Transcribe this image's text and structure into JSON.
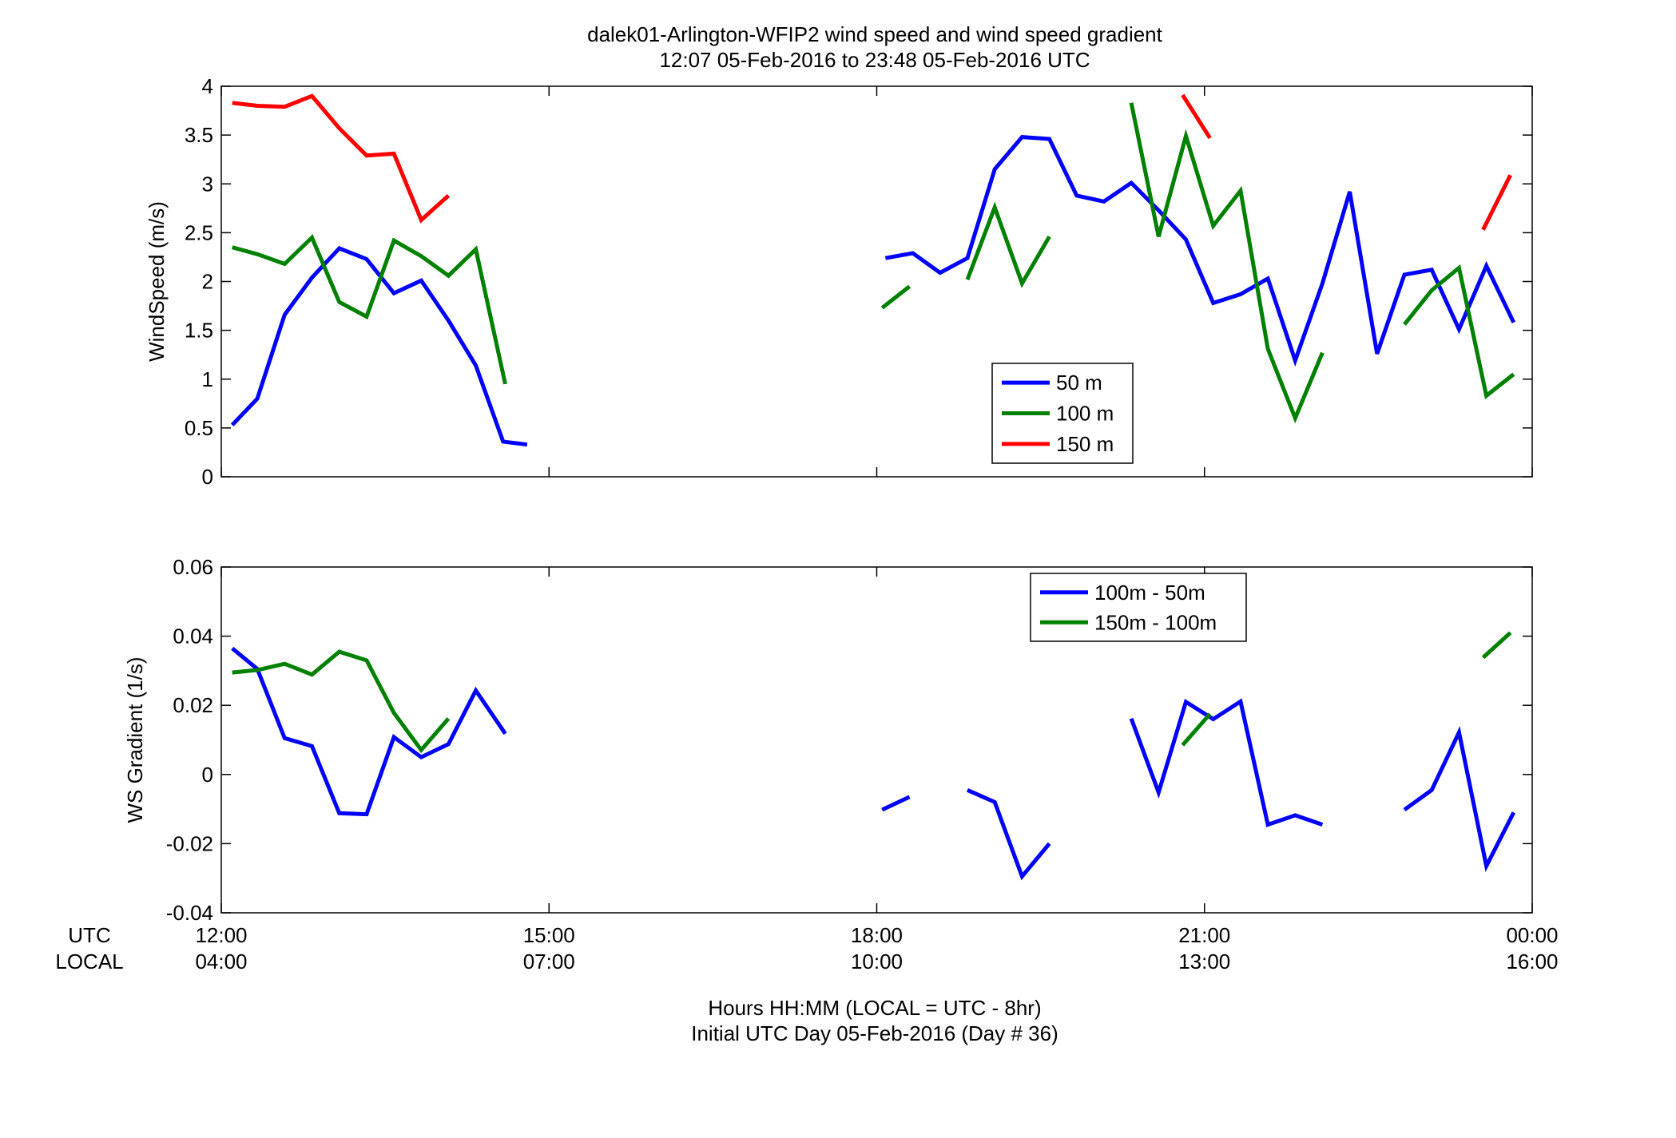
{
  "figure": {
    "title_line1": "dalek01-Arlington-WFIP2  wind speed and wind speed gradient",
    "title_line2": "12:07 05-Feb-2016 to 23:48 05-Feb-2016  UTC",
    "xlabel_line1": "Hours HH:MM  (LOCAL = UTC - 8hr)",
    "xlabel_line2": "Initial UTC Day 05-Feb-2016 (Day # 36)",
    "row_label_utc": "UTC",
    "row_label_local": "LOCAL"
  },
  "x_ticks": [
    {
      "utc": "12:00",
      "local": "04:00",
      "hour": 12
    },
    {
      "utc": "15:00",
      "local": "07:00",
      "hour": 15
    },
    {
      "utc": "18:00",
      "local": "10:00",
      "hour": 18
    },
    {
      "utc": "21:00",
      "local": "13:00",
      "hour": 21
    },
    {
      "utc": "00:00",
      "local": "16:00",
      "hour": 24
    }
  ],
  "chart_data": [
    {
      "type": "line",
      "ylabel": "WindSpeed (m/s)",
      "xlim": [
        12,
        24
      ],
      "ylim": [
        0,
        4
      ],
      "yticks": [
        0,
        0.5,
        1,
        1.5,
        2,
        2.5,
        3,
        3.5,
        4
      ],
      "ytick_labels": [
        "0",
        "0.5",
        "1",
        "1.5",
        "2",
        "2.5",
        "3",
        "3.5",
        "4"
      ],
      "grid": false,
      "legend_position": "lower-center-right",
      "series": [
        {
          "name": "50 m",
          "color": "#0000ff",
          "segments": [
            {
              "x": [
                12.1,
                12.33,
                12.58,
                12.83,
                13.08,
                13.33,
                13.58,
                13.83,
                14.08,
                14.33,
                14.58,
                14.8
              ],
              "y": [
                0.53,
                0.8,
                1.66,
                2.04,
                2.34,
                2.23,
                1.88,
                2.01,
                1.6,
                1.14,
                0.36,
                0.33
              ]
            },
            {
              "x": [
                18.08,
                18.33,
                18.58,
                18.83,
                19.08,
                19.33,
                19.58,
                19.83,
                20.08,
                20.33,
                20.58,
                20.83,
                21.08,
                21.33,
                21.58,
                21.83,
                22.08,
                22.33,
                22.58,
                22.83,
                23.08,
                23.33,
                23.58,
                23.83
              ],
              "y": [
                2.24,
                2.29,
                2.09,
                2.24,
                3.15,
                3.48,
                3.46,
                2.88,
                2.82,
                3.01,
                2.73,
                2.43,
                1.78,
                1.87,
                2.03,
                1.19,
                1.98,
                2.92,
                1.26,
                2.07,
                2.12,
                1.51,
                2.16,
                1.58
              ]
            }
          ]
        },
        {
          "name": "100 m",
          "color": "#008000",
          "segments": [
            {
              "x": [
                12.1,
                12.33,
                12.58,
                12.83,
                13.08,
                13.33,
                13.58,
                13.83,
                14.08,
                14.33,
                14.6
              ],
              "y": [
                2.35,
                2.28,
                2.18,
                2.45,
                1.79,
                1.64,
                2.42,
                2.26,
                2.06,
                2.33,
                0.95
              ]
            },
            {
              "x": [
                18.05,
                18.3
              ],
              "y": [
                1.73,
                1.95
              ]
            },
            {
              "x": [
                18.83,
                19.08,
                19.33,
                19.58
              ],
              "y": [
                2.02,
                2.76,
                1.98,
                2.46
              ]
            },
            {
              "x": [
                20.33,
                20.58,
                20.83,
                21.08,
                21.33,
                21.58,
                21.83,
                22.08
              ],
              "y": [
                3.83,
                2.46,
                3.49,
                2.57,
                2.93,
                1.31,
                0.6,
                1.27
              ]
            },
            {
              "x": [
                22.83,
                23.08,
                23.33,
                23.58,
                23.83
              ],
              "y": [
                1.56,
                1.91,
                2.14,
                0.83,
                1.05
              ]
            }
          ]
        },
        {
          "name": "150 m",
          "color": "#ff0000",
          "segments": [
            {
              "x": [
                12.1,
                12.33,
                12.58,
                12.83,
                13.08,
                13.33,
                13.58,
                13.83,
                14.08
              ],
              "y": [
                3.83,
                3.8,
                3.79,
                3.9,
                3.57,
                3.29,
                3.31,
                2.63,
                2.88
              ]
            },
            {
              "x": [
                20.8,
                21.05
              ],
              "y": [
                3.91,
                3.47
              ]
            },
            {
              "x": [
                23.55,
                23.8
              ],
              "y": [
                2.53,
                3.09
              ]
            }
          ]
        }
      ]
    },
    {
      "type": "line",
      "ylabel": "WS Gradient (1/s)",
      "xlim": [
        12,
        24
      ],
      "ylim": [
        -0.04,
        0.06
      ],
      "yticks": [
        -0.04,
        -0.02,
        0,
        0.02,
        0.04,
        0.06
      ],
      "ytick_labels": [
        "-0.04",
        "-0.02",
        "0",
        "0.02",
        "0.04",
        "0.06"
      ],
      "grid": false,
      "legend_position": "top-right",
      "series": [
        {
          "name": "100m - 50m",
          "color": "#0000ff",
          "segments": [
            {
              "x": [
                12.1,
                12.33,
                12.58,
                12.83,
                13.08,
                13.33,
                13.58,
                13.83,
                14.08,
                14.33,
                14.6
              ],
              "y": [
                0.0365,
                0.0305,
                0.0105,
                0.0082,
                -0.0112,
                -0.0115,
                0.0108,
                0.005,
                0.0088,
                0.0243,
                0.0118
              ]
            },
            {
              "x": [
                18.05,
                18.3
              ],
              "y": [
                -0.0102,
                -0.0065
              ]
            },
            {
              "x": [
                18.83,
                19.08,
                19.33,
                19.58
              ],
              "y": [
                -0.0045,
                -0.008,
                -0.0295,
                -0.02
              ]
            },
            {
              "x": [
                20.33,
                20.58,
                20.83,
                21.08,
                21.33,
                21.58,
                21.83,
                22.08
              ],
              "y": [
                0.0162,
                -0.0052,
                0.021,
                0.016,
                0.0211,
                -0.0145,
                -0.0118,
                -0.0145
              ]
            },
            {
              "x": [
                22.83,
                23.08,
                23.33,
                23.58,
                23.83
              ],
              "y": [
                -0.0102,
                -0.0045,
                0.0122,
                -0.0265,
                -0.011
              ]
            }
          ]
        },
        {
          "name": "150m - 100m",
          "color": "#008000",
          "segments": [
            {
              "x": [
                12.1,
                12.33,
                12.58,
                12.83,
                13.08,
                13.33,
                13.58,
                13.83,
                14.08
              ],
              "y": [
                0.0295,
                0.0302,
                0.032,
                0.0289,
                0.0355,
                0.033,
                0.0178,
                0.0071,
                0.0162
              ]
            },
            {
              "x": [
                20.8,
                21.05
              ],
              "y": [
                0.0085,
                0.0175
              ]
            },
            {
              "x": [
                23.55,
                23.8
              ],
              "y": [
                0.0338,
                0.041
              ]
            }
          ]
        }
      ]
    }
  ]
}
